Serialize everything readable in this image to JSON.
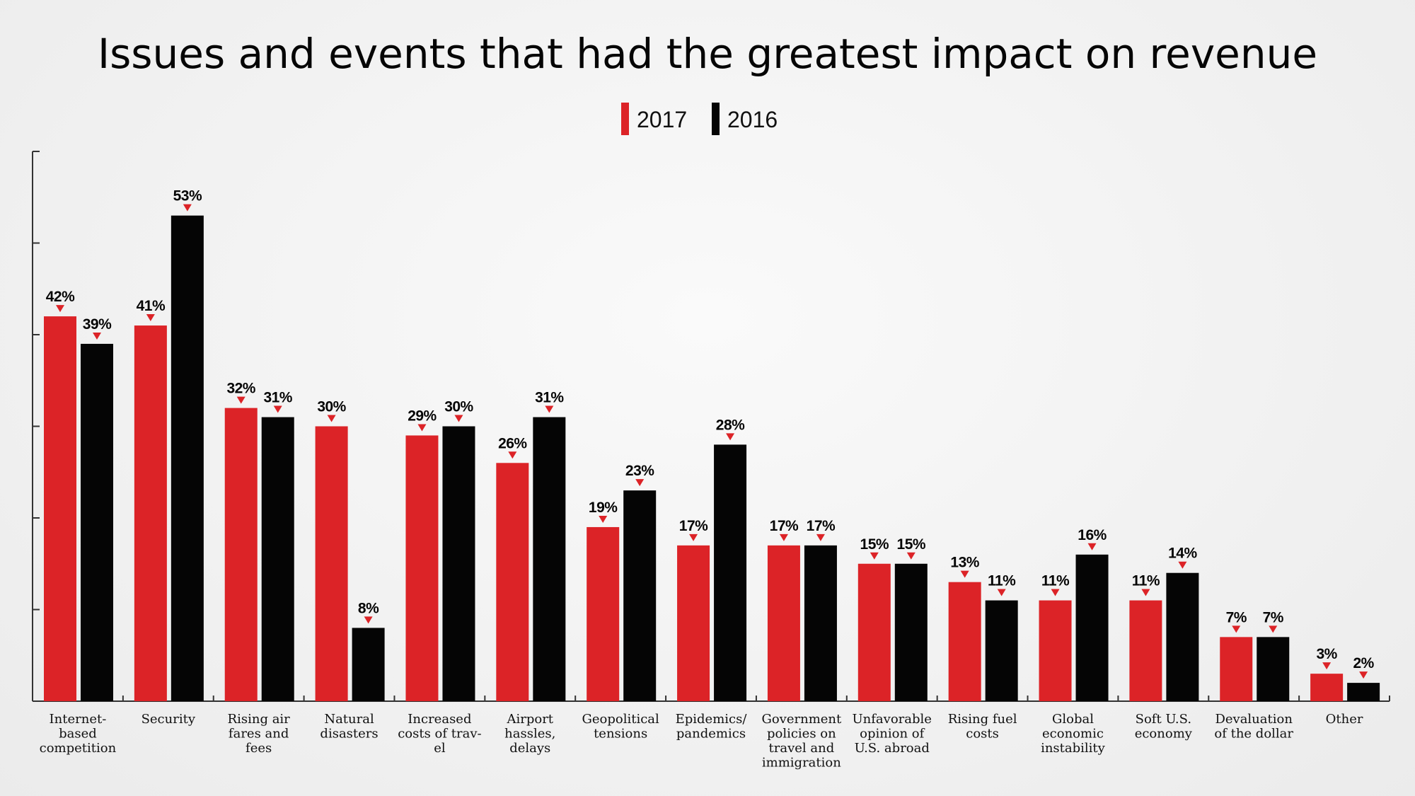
{
  "chart_data": {
    "type": "bar",
    "title": "Issues and events that had the greatest impact on revenue",
    "xlabel": "",
    "ylabel": "",
    "ylim": [
      0,
      60
    ],
    "yticks": [
      0,
      10,
      20,
      30,
      40,
      50,
      60
    ],
    "grid": false,
    "legend_position": "top-center",
    "categories": [
      [
        "Internet-",
        "based",
        "competition"
      ],
      [
        "Security"
      ],
      [
        "Rising air",
        "fares and",
        "fees"
      ],
      [
        "Natural",
        "disasters"
      ],
      [
        "Increased",
        "costs of trav-",
        "el"
      ],
      [
        "Airport",
        "hassles,",
        "delays"
      ],
      [
        "Geopolitical",
        "tensions"
      ],
      [
        "Epidemics/",
        "pandemics"
      ],
      [
        "Government",
        "policies on",
        "travel and",
        "immigration"
      ],
      [
        "Unfavorable",
        "opinion of",
        "U.S. abroad"
      ],
      [
        "Rising fuel",
        "costs"
      ],
      [
        "Global",
        "economic",
        "instability"
      ],
      [
        "Soft U.S.",
        "economy"
      ],
      [
        "Devaluation",
        "of the dollar"
      ],
      [
        "Other"
      ]
    ],
    "series": [
      {
        "name": "2017",
        "color": "#dc2327",
        "values": [
          42,
          41,
          32,
          30,
          29,
          26,
          19,
          17,
          17,
          15,
          13,
          11,
          11,
          7,
          3
        ],
        "labels": [
          "42%",
          "41%",
          "32%",
          "30%",
          "29%",
          "26%",
          "19%",
          "17%",
          "17%",
          "15%",
          "13%",
          "11%",
          "11%",
          "7%",
          "3%"
        ]
      },
      {
        "name": "2016",
        "color": "#050505",
        "values": [
          39,
          53,
          31,
          8,
          30,
          31,
          23,
          28,
          17,
          15,
          11,
          16,
          14,
          7,
          2
        ],
        "labels": [
          "39%",
          "53%",
          "31%",
          "8%",
          "30%",
          "31%",
          "23%",
          "28%",
          "17%",
          "15%",
          "11%",
          "16%",
          "14%",
          "7%",
          "2%"
        ]
      }
    ],
    "marker_color": "#dc2327"
  }
}
